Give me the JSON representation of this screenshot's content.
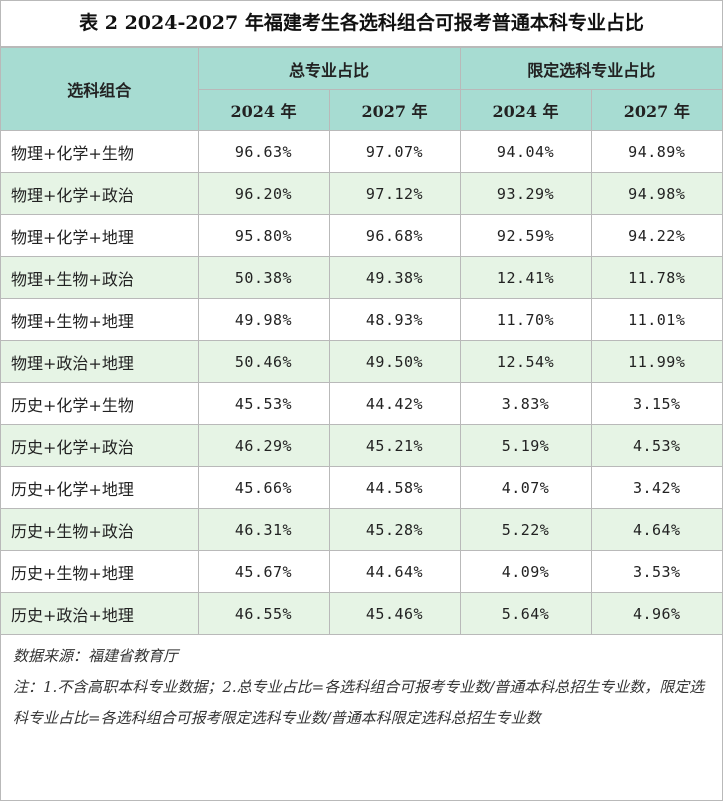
{
  "title": "表 2 2024-2027 年福建考生各选科组合可报考普通本科专业占比",
  "header": {
    "combo_label": "选科组合",
    "group_total": "总专业占比",
    "group_limited": "限定选科专业占比",
    "years": [
      "2024 年",
      "2027 年",
      "2024 年",
      "2027 年"
    ]
  },
  "rows": [
    {
      "combo": "物理+化学+生物",
      "t2024": "96.63%",
      "t2027": "97.07%",
      "l2024": "94.04%",
      "l2027": "94.89%"
    },
    {
      "combo": "物理+化学+政治",
      "t2024": "96.20%",
      "t2027": "97.12%",
      "l2024": "93.29%",
      "l2027": "94.98%"
    },
    {
      "combo": "物理+化学+地理",
      "t2024": "95.80%",
      "t2027": "96.68%",
      "l2024": "92.59%",
      "l2027": "94.22%"
    },
    {
      "combo": "物理+生物+政治",
      "t2024": "50.38%",
      "t2027": "49.38%",
      "l2024": "12.41%",
      "l2027": "11.78%"
    },
    {
      "combo": "物理+生物+地理",
      "t2024": "49.98%",
      "t2027": "48.93%",
      "l2024": "11.70%",
      "l2027": "11.01%"
    },
    {
      "combo": "物理+政治+地理",
      "t2024": "50.46%",
      "t2027": "49.50%",
      "l2024": "12.54%",
      "l2027": "11.99%"
    },
    {
      "combo": "历史+化学+生物",
      "t2024": "45.53%",
      "t2027": "44.42%",
      "l2024": "3.83%",
      "l2027": "3.15%"
    },
    {
      "combo": "历史+化学+政治",
      "t2024": "46.29%",
      "t2027": "45.21%",
      "l2024": "5.19%",
      "l2027": "4.53%"
    },
    {
      "combo": "历史+化学+地理",
      "t2024": "45.66%",
      "t2027": "44.58%",
      "l2024": "4.07%",
      "l2027": "3.42%"
    },
    {
      "combo": "历史+生物+政治",
      "t2024": "46.31%",
      "t2027": "45.28%",
      "l2024": "5.22%",
      "l2027": "4.64%"
    },
    {
      "combo": "历史+生物+地理",
      "t2024": "45.67%",
      "t2027": "44.64%",
      "l2024": "4.09%",
      "l2027": "3.53%"
    },
    {
      "combo": "历史+政治+地理",
      "t2024": "46.55%",
      "t2027": "45.46%",
      "l2024": "5.64%",
      "l2027": "4.96%"
    }
  ],
  "notes": {
    "source": "数据来源：福建省教育厅",
    "note": "注：1.不含高职本科专业数据；2.总专业占比=各选科组合可报考专业数/普通本科总招生专业数，限定选科专业占比=各选科组合可报考限定选科专业数/普通本科限定选科总招生专业数"
  },
  "colors": {
    "header_bg": "#a7dcd2",
    "stripe_bg": "#e6f4e5",
    "border": "#b9b9b9"
  }
}
